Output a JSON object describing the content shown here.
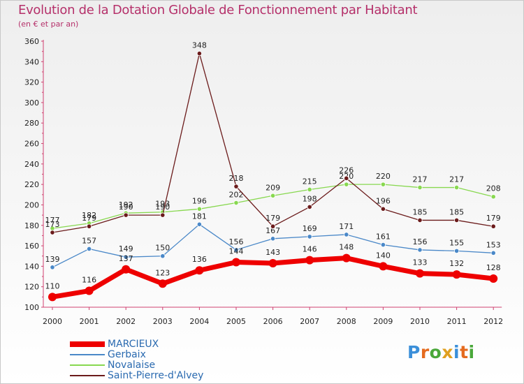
{
  "title": "Evolution de la Dotation Globale de Fonctionnement par Habitant",
  "subtitle": "(en € et par an)",
  "logo_text": "Proxiti",
  "chart_data": {
    "type": "line",
    "title": "Evolution de la Dotation Globale de Fonctionnement par Habitant",
    "subtitle": "(en € et par an)",
    "x": [
      "2000",
      "2001",
      "2002",
      "2003",
      "2004",
      "2005",
      "2006",
      "2007",
      "2008",
      "2009",
      "2010",
      "2011",
      "2012"
    ],
    "ylim": [
      100,
      360
    ],
    "yticks": [
      100,
      120,
      140,
      160,
      180,
      200,
      220,
      240,
      260,
      280,
      300,
      320,
      340,
      360
    ],
    "grid": false,
    "legend_position": "bottom-left",
    "series": [
      {
        "name": "MARCIEUX",
        "color": "#ee0000",
        "values": [
          110,
          116,
          137,
          123,
          136,
          144,
          143,
          146,
          148,
          140,
          133,
          132,
          128
        ]
      },
      {
        "name": "Gerbaix",
        "color": "#4a88c8",
        "values": [
          139,
          157,
          149,
          150,
          181,
          156,
          167,
          169,
          171,
          161,
          156,
          155,
          153
        ]
      },
      {
        "name": "Novalaise",
        "color": "#88d850",
        "values": [
          177,
          182,
          192,
          193,
          196,
          202,
          209,
          215,
          220,
          220,
          217,
          217,
          208
        ]
      },
      {
        "name": "Saint-Pierre-d'Alvey",
        "color": "#6b1b1b",
        "values": [
          173,
          179,
          190,
          190,
          348,
          218,
          179,
          198,
          226,
          196,
          185,
          185,
          179
        ]
      }
    ]
  }
}
